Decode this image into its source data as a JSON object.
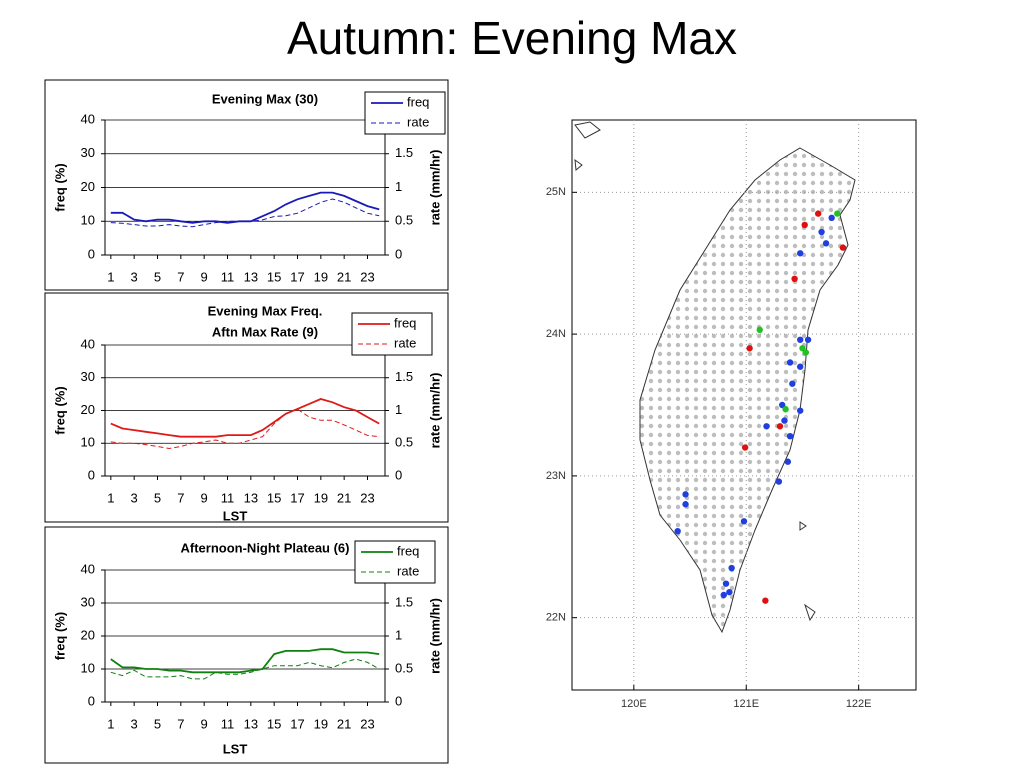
{
  "title": "Autumn: Evening Max",
  "chart_data": [
    {
      "type": "line",
      "title": "Evening Max (30)",
      "x": [
        1,
        2,
        3,
        4,
        5,
        6,
        7,
        8,
        9,
        10,
        11,
        12,
        13,
        14,
        15,
        16,
        17,
        18,
        19,
        20,
        21,
        22,
        23,
        24
      ],
      "xlim": [
        0.5,
        24.5
      ],
      "xticks": [
        1,
        3,
        5,
        7,
        9,
        11,
        13,
        15,
        17,
        19,
        21,
        23
      ],
      "ylim": [
        0,
        40
      ],
      "yticks": [
        0,
        10,
        20,
        30,
        40
      ],
      "y2lim": [
        0,
        2
      ],
      "y2ticks": [
        0,
        0.5,
        1,
        1.5
      ],
      "ylabel": "freq (%)",
      "y2label": "rate (mm/hr)",
      "grid": true,
      "series": [
        {
          "name": "freq",
          "color": "#1a1ab8",
          "values": [
            12.5,
            12.5,
            10.5,
            10,
            10.5,
            10.5,
            10,
            9.5,
            10,
            10,
            9.5,
            10,
            10,
            11.5,
            13,
            15,
            16.5,
            17.5,
            18.5,
            18.5,
            17.5,
            16,
            14.5,
            13.5
          ]
        },
        {
          "name": "rate",
          "color": "#1a1ab8",
          "axis": "y2",
          "dashed": true,
          "values": [
            0.48,
            0.47,
            0.45,
            0.43,
            0.43,
            0.45,
            0.43,
            0.42,
            0.45,
            0.48,
            0.5,
            0.5,
            0.5,
            0.52,
            0.57,
            0.58,
            0.62,
            0.7,
            0.78,
            0.83,
            0.78,
            0.7,
            0.62,
            0.58
          ]
        }
      ]
    },
    {
      "type": "line",
      "title": [
        "Evening Max Freq.",
        "Aftn Max Rate (9)"
      ],
      "x": [
        1,
        2,
        3,
        4,
        5,
        6,
        7,
        8,
        9,
        10,
        11,
        12,
        13,
        14,
        15,
        16,
        17,
        18,
        19,
        20,
        21,
        22,
        23,
        24
      ],
      "xlim": [
        0.5,
        24.5
      ],
      "xticks": [
        1,
        3,
        5,
        7,
        9,
        11,
        13,
        15,
        17,
        19,
        21,
        23
      ],
      "ylim": [
        0,
        40
      ],
      "yticks": [
        0,
        10,
        20,
        30,
        40
      ],
      "y2lim": [
        0,
        2
      ],
      "y2ticks": [
        0,
        0.5,
        1,
        1.5
      ],
      "xlabel": "LST",
      "ylabel": "freq (%)",
      "y2label": "rate (mm/hr)",
      "grid": true,
      "series": [
        {
          "name": "freq",
          "color": "#e01818",
          "values": [
            16,
            14.5,
            14,
            13.5,
            13,
            12.5,
            12,
            12,
            12,
            12,
            12.5,
            12.5,
            12.5,
            14,
            16.5,
            19,
            20.5,
            22,
            23.5,
            22.5,
            21,
            20,
            18,
            16
          ]
        },
        {
          "name": "rate",
          "color": "#e01818",
          "axis": "y2",
          "dashed": true,
          "values": [
            0.52,
            0.5,
            0.5,
            0.48,
            0.45,
            0.42,
            0.45,
            0.5,
            0.52,
            0.55,
            0.5,
            0.5,
            0.55,
            0.6,
            0.8,
            0.95,
            1.02,
            0.9,
            0.85,
            0.85,
            0.78,
            0.7,
            0.62,
            0.6
          ]
        }
      ]
    },
    {
      "type": "line",
      "title": "Afternoon-Night Plateau (6)",
      "x": [
        1,
        2,
        3,
        4,
        5,
        6,
        7,
        8,
        9,
        10,
        11,
        12,
        13,
        14,
        15,
        16,
        17,
        18,
        19,
        20,
        21,
        22,
        23,
        24
      ],
      "xlim": [
        0.5,
        24.5
      ],
      "xticks": [
        1,
        3,
        5,
        7,
        9,
        11,
        13,
        15,
        17,
        19,
        21,
        23
      ],
      "ylim": [
        0,
        40
      ],
      "yticks": [
        0,
        10,
        20,
        30,
        40
      ],
      "y2lim": [
        0,
        2
      ],
      "y2ticks": [
        0,
        0.5,
        1,
        1.5
      ],
      "xlabel": "LST",
      "ylabel": "freq (%)",
      "y2label": "rate (mm/hr)",
      "grid": true,
      "series": [
        {
          "name": "freq",
          "color": "#0e800e",
          "values": [
            13,
            10.5,
            10.5,
            10,
            10,
            9.5,
            9.5,
            9,
            9,
            9,
            9,
            9,
            9.5,
            10,
            14.5,
            15.5,
            15.5,
            15.5,
            16,
            16,
            15,
            15,
            15,
            14.5
          ]
        },
        {
          "name": "rate",
          "color": "#0e800e",
          "axis": "y2",
          "dashed": true,
          "values": [
            0.45,
            0.4,
            0.48,
            0.38,
            0.38,
            0.38,
            0.4,
            0.35,
            0.35,
            0.45,
            0.42,
            0.42,
            0.45,
            0.5,
            0.55,
            0.55,
            0.55,
            0.6,
            0.55,
            0.52,
            0.6,
            0.65,
            0.6,
            0.5
          ]
        }
      ]
    },
    {
      "type": "scatter",
      "xlim": [
        119.45,
        122.51
      ],
      "ylim": [
        21.49,
        25.51
      ],
      "xticks": [
        {
          "value": 120,
          "label": "120E"
        },
        {
          "value": 121,
          "label": "121E"
        },
        {
          "value": 122,
          "label": "122E"
        }
      ],
      "yticks": [
        {
          "value": 22,
          "label": "22N"
        },
        {
          "value": 23,
          "label": "23N"
        },
        {
          "value": 24,
          "label": "24N"
        },
        {
          "value": 25,
          "label": "25N"
        }
      ],
      "grid": true,
      "series": [
        {
          "color": "#1f3fe0",
          "x": [
            121.76,
            121.67,
            121.71,
            121.48,
            121.55,
            121.48,
            121.39,
            121.48,
            121.41,
            121.32,
            121.34,
            121.48,
            121.18,
            121.39,
            121.37,
            121.29,
            120.46,
            120.46,
            120.39,
            120.98,
            120.87,
            120.82,
            120.85,
            120.8
          ],
          "values": [
            24.82,
            24.72,
            24.64,
            24.57,
            23.96,
            23.96,
            23.8,
            23.77,
            23.65,
            23.5,
            23.39,
            23.46,
            23.35,
            23.28,
            23.1,
            22.96,
            22.87,
            22.8,
            22.61,
            22.68,
            22.35,
            22.24,
            22.18,
            22.16
          ]
        },
        {
          "color": "#e01010",
          "x": [
            121.64,
            121.52,
            121.86,
            121.43,
            121.03,
            120.99,
            121.3,
            121.17
          ],
          "values": [
            24.85,
            24.77,
            24.61,
            24.39,
            23.9,
            23.2,
            23.35,
            22.12
          ]
        },
        {
          "color": "#22c022",
          "x": [
            121.81,
            121.12,
            121.5,
            121.53,
            121.35
          ],
          "values": [
            24.85,
            24.03,
            23.9,
            23.87,
            23.47
          ]
        }
      ]
    }
  ]
}
